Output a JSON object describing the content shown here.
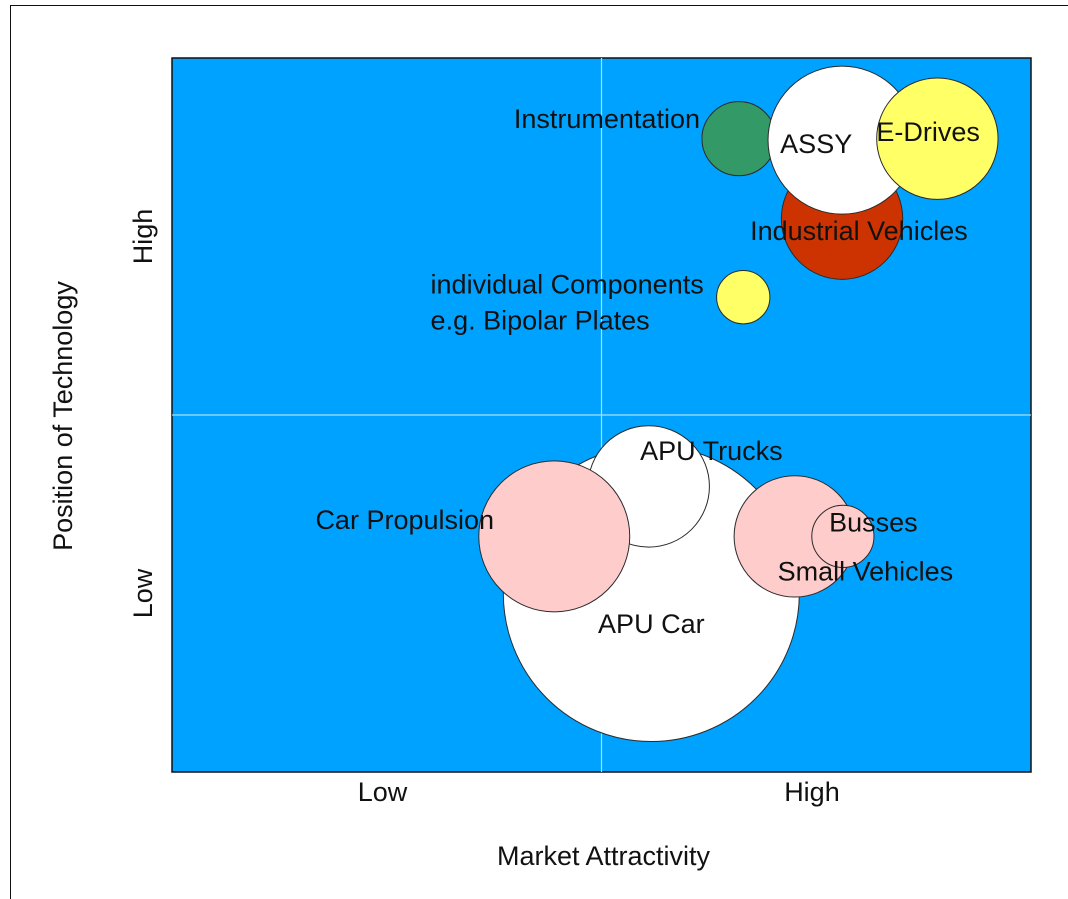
{
  "chart_data": {
    "type": "scatter",
    "subtype": "bubble-portfolio-matrix",
    "xlabel": "Market Attractivity",
    "ylabel": "Position of Technology",
    "x_ticks": [
      "Low",
      "High"
    ],
    "y_ticks": [
      "Low",
      "High"
    ],
    "xlim": [
      0,
      1
    ],
    "ylim": [
      0,
      1
    ],
    "grid": true,
    "legend": "none",
    "colors": {
      "plot_background": "#00A2FF",
      "grid_line": "#A9DDFF",
      "bubble_stroke": "#2A2A2A",
      "text": "#111111"
    },
    "bubbles": [
      {
        "name": "APU Car",
        "x": 0.558,
        "y": 0.25,
        "size": 1.0,
        "color": "#FFFFFF"
      },
      {
        "name": "APU Trucks",
        "x": 0.555,
        "y": 0.4,
        "size": 0.41,
        "color": "#FFFFFF"
      },
      {
        "name": "Car Propulsion",
        "x": 0.445,
        "y": 0.33,
        "size": 0.51,
        "color": "#FFCCCC"
      },
      {
        "name": "Small Vehicles",
        "x": 0.725,
        "y": 0.33,
        "size": 0.41,
        "color": "#FFCCCC"
      },
      {
        "name": "Busses",
        "x": 0.781,
        "y": 0.33,
        "size": 0.21,
        "color": "#FFCCCC"
      },
      {
        "name": "Industrial Vehicles",
        "x": 0.78,
        "y": 0.775,
        "size": 0.41,
        "color": "#CC3300"
      },
      {
        "name": "Instrumentation",
        "x": 0.66,
        "y": 0.887,
        "size": 0.25,
        "color": "#339966"
      },
      {
        "name": "ASSY",
        "x": 0.78,
        "y": 0.885,
        "size": 0.5,
        "color": "#FFFFFF"
      },
      {
        "name": "E-Drives",
        "x": 0.891,
        "y": 0.887,
        "size": 0.41,
        "color": "#FFFF66"
      },
      {
        "name": "individual Components\ne.g. Bipolar Plates",
        "x": 0.665,
        "y": 0.665,
        "size": 0.18,
        "color": "#FFFF66"
      }
    ],
    "labels": [
      {
        "text": "APU Car",
        "x": 0.558,
        "y": 0.195,
        "anchor": "middle"
      },
      {
        "text": "APU Trucks",
        "x": 0.545,
        "y": 0.437,
        "anchor": "start"
      },
      {
        "text": "Car Propulsion",
        "x": 0.167,
        "y": 0.34,
        "anchor": "start"
      },
      {
        "text": "Busses",
        "x": 0.765,
        "y": 0.337,
        "anchor": "start"
      },
      {
        "text": "Small Vehicles",
        "x": 0.705,
        "y": 0.268,
        "anchor": "start"
      },
      {
        "text": "Industrial Vehicles",
        "x": 0.673,
        "y": 0.745,
        "anchor": "start"
      },
      {
        "text": "Instrumentation",
        "x": 0.398,
        "y": 0.902,
        "anchor": "start"
      },
      {
        "text": "ASSY",
        "x": 0.708,
        "y": 0.867,
        "anchor": "start"
      },
      {
        "text": "E-Drives",
        "x": 0.82,
        "y": 0.884,
        "anchor": "start"
      },
      {
        "text": "individual Components",
        "x": 0.301,
        "y": 0.67,
        "anchor": "start"
      },
      {
        "text": "e.g. Bipolar Plates",
        "x": 0.301,
        "y": 0.62,
        "anchor": "start"
      }
    ]
  }
}
